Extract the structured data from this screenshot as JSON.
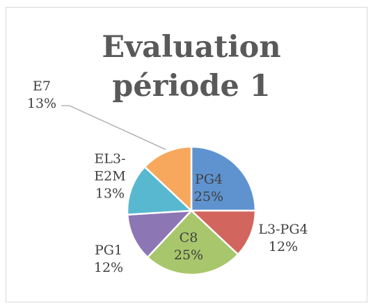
{
  "chart_data": {
    "type": "pie",
    "title": "Evaluation période 1",
    "categories": [
      "PG4",
      "L3-PG4",
      "C8",
      "PG1",
      "EL3-E2M",
      "E7"
    ],
    "values": [
      25,
      12,
      25,
      12,
      13,
      13
    ],
    "value_labels": [
      "25%",
      "12%",
      "25%",
      "12%",
      "13%",
      "13%"
    ],
    "colors": [
      "#5f93d0",
      "#d2655d",
      "#a8c66c",
      "#8d76b4",
      "#58b8cf",
      "#f8a85c"
    ]
  }
}
